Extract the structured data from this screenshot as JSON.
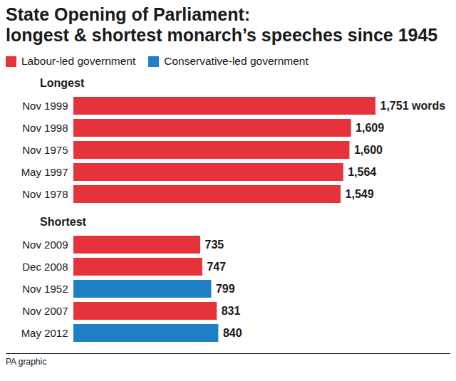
{
  "chart_data": {
    "type": "bar",
    "orientation": "horizontal",
    "title": "State Opening of Parliament:",
    "subtitle": "longest & shortest monarch’s speeches since 1945",
    "source": "PA graphic",
    "legend": "top-left",
    "data_labels": true,
    "tick_labels": "y",
    "series": [
      {
        "name": "Labour-led government",
        "color": "#e5323b"
      },
      {
        "name": "Conservative-led government",
        "color": "#1d7fc4"
      }
    ],
    "groups": [
      {
        "title": "Longest",
        "categories": [
          "Nov 1999",
          "Nov 1998",
          "Nov 1975",
          "May 1997",
          "Nov 1978"
        ],
        "values": [
          1751,
          1609,
          1600,
          1564,
          1549
        ],
        "value_labels": [
          "1,751 words",
          "1,609",
          "1,600",
          "1,564",
          "1,549"
        ],
        "colors": [
          "#e5323b",
          "#e5323b",
          "#e5323b",
          "#e5323b",
          "#e5323b"
        ]
      },
      {
        "title": "Shortest",
        "categories": [
          "Nov 2009",
          "Dec 2008",
          "Nov 1952",
          "Nov 2007",
          "May 2012"
        ],
        "values": [
          735,
          747,
          799,
          831,
          840
        ],
        "colors": [
          "#e5323b",
          "#e5323b",
          "#1d7fc4",
          "#e5323b",
          "#1d7fc4"
        ]
      }
    ]
  }
}
